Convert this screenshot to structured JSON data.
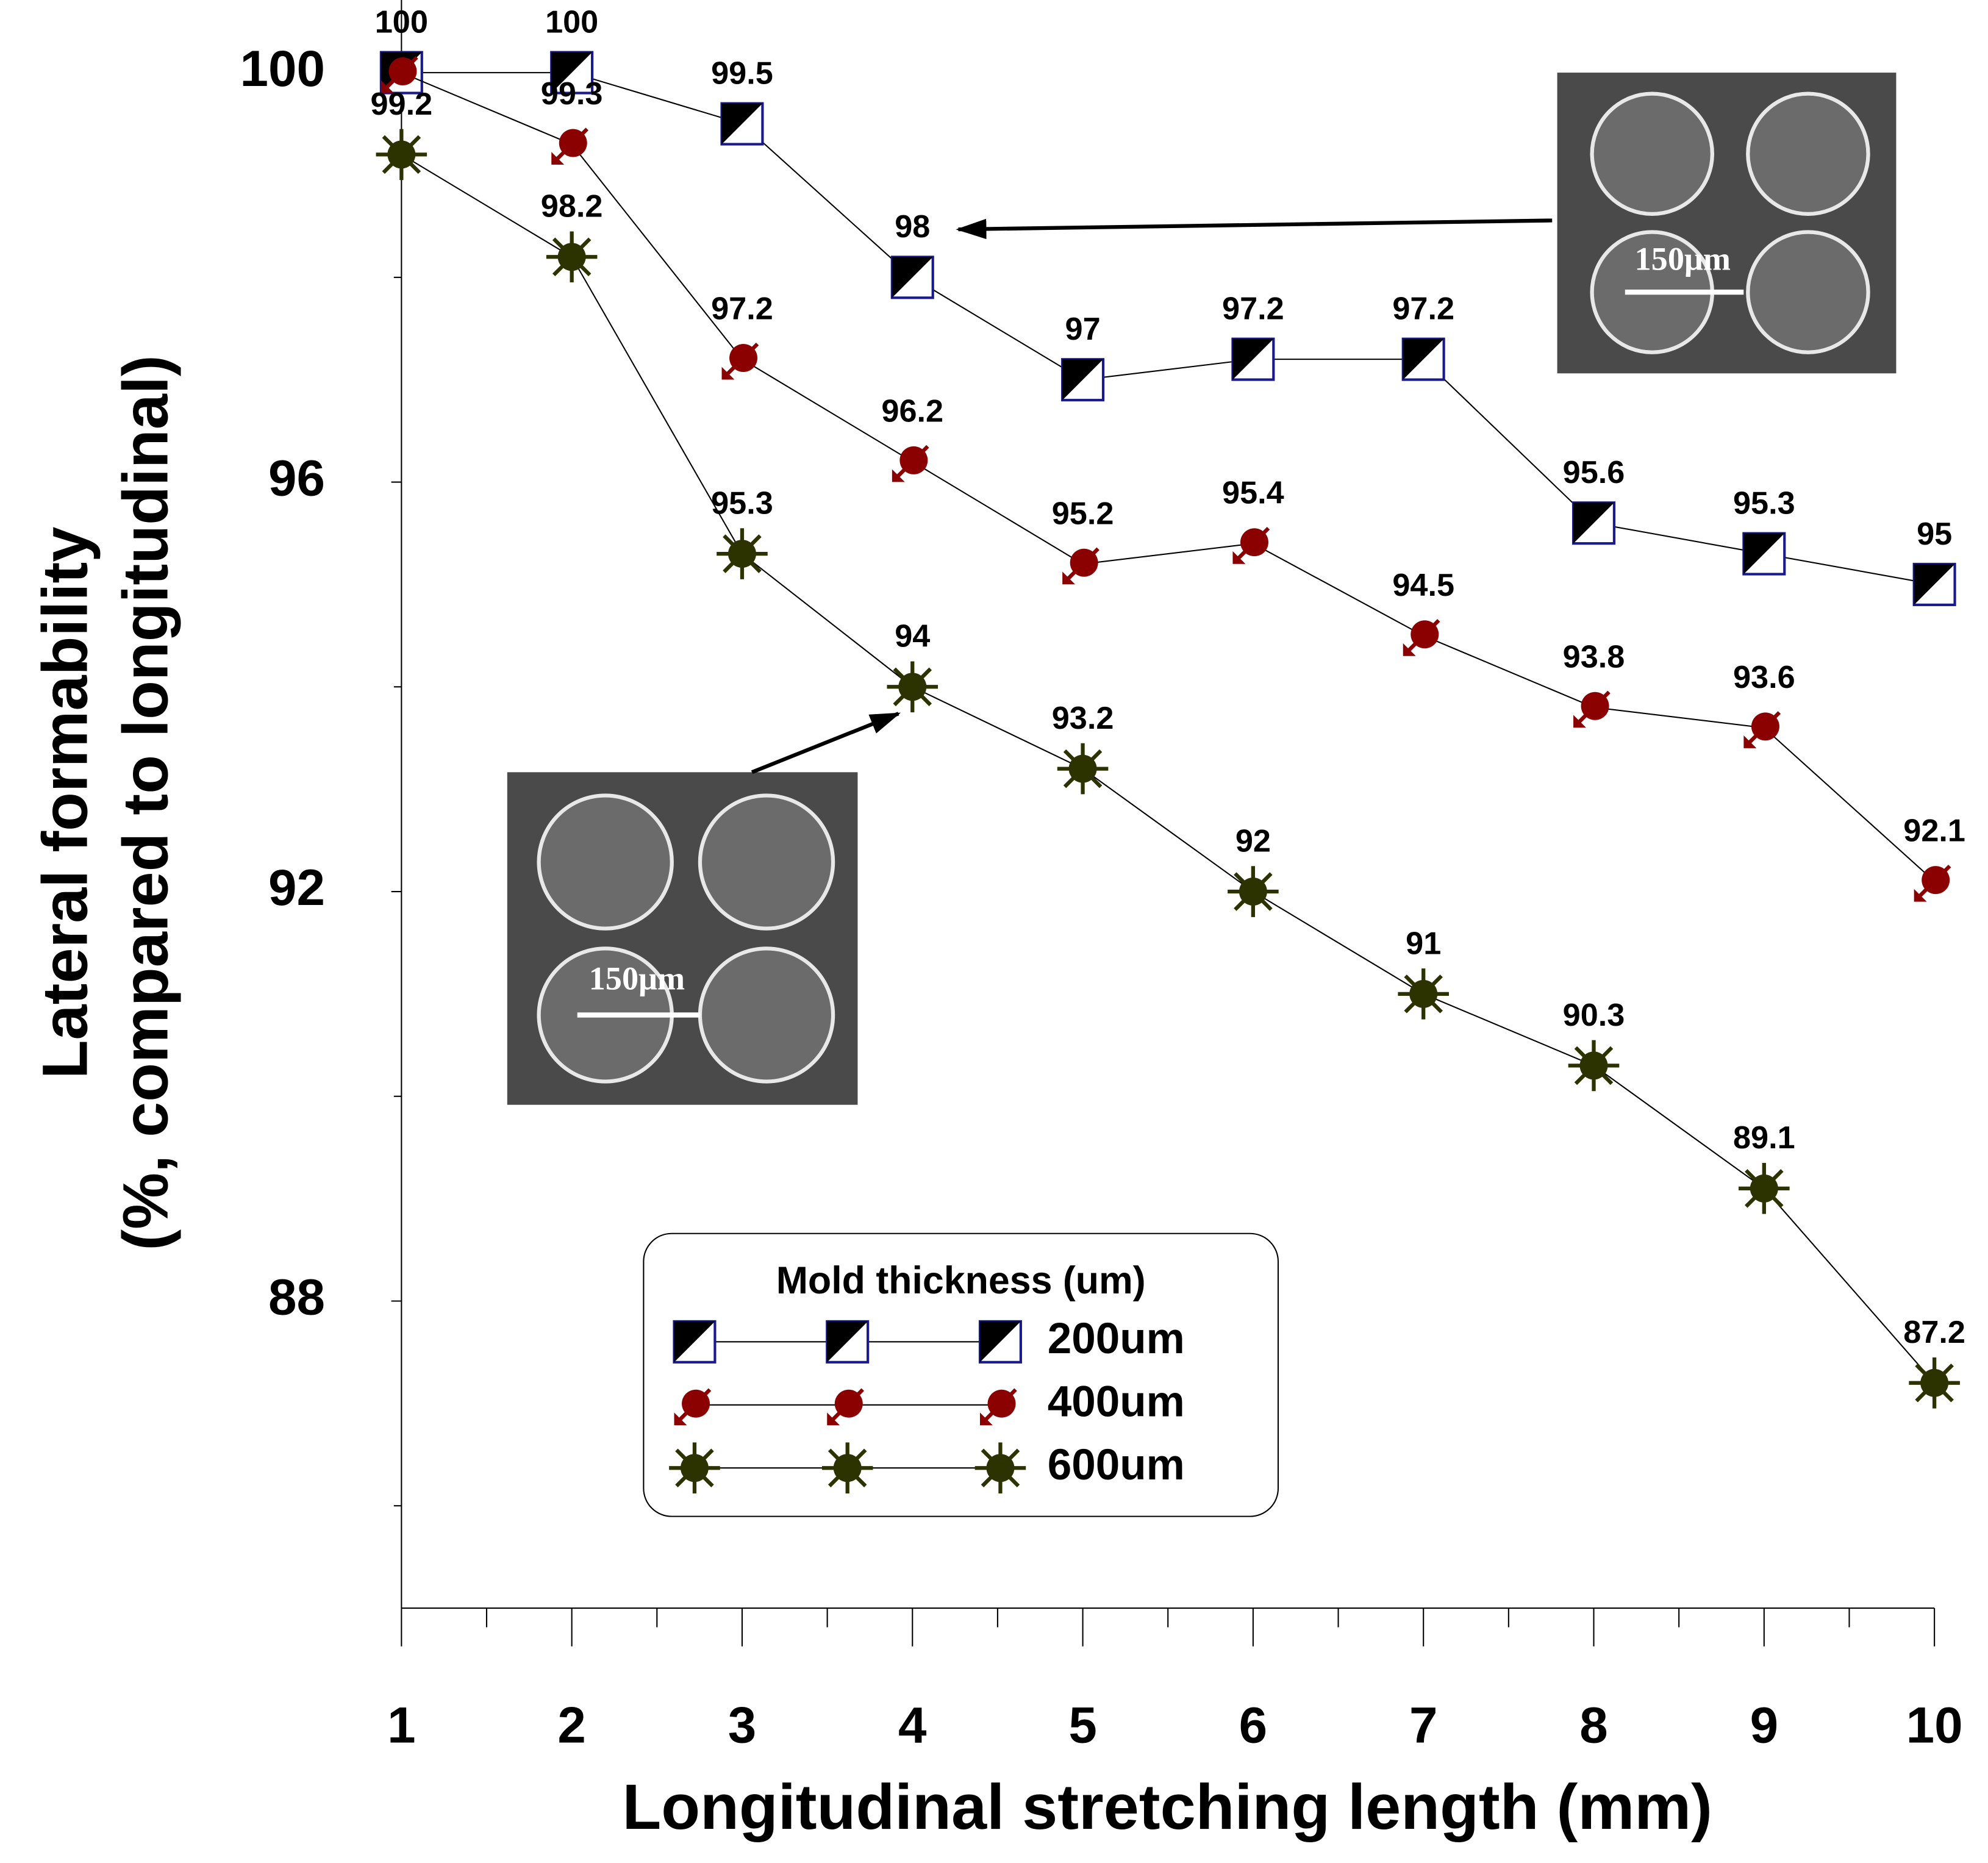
{
  "chart_data": {
    "type": "line",
    "xlabel": "Longitudinal stretching length (mm)",
    "ylabel": [
      "Lateral formability",
      "(%, compared to longitudinal)"
    ],
    "x": [
      1,
      2,
      3,
      4,
      5,
      6,
      7,
      8,
      9,
      10
    ],
    "xlim": [
      1,
      10
    ],
    "xticks": [
      1,
      2,
      3,
      4,
      5,
      6,
      7,
      8,
      9,
      10
    ],
    "xminor_ticks": [
      1.5,
      2.5,
      3.5,
      4.5,
      5.5,
      6.5,
      7.5,
      8.5,
      9.5
    ],
    "ylim": [
      85,
      100
    ],
    "yticks": [
      88,
      92,
      96,
      100
    ],
    "yminor_ticks": [
      86,
      90,
      94,
      98
    ],
    "legend_title": "Mold thickness (um)",
    "legend_position": "lower center",
    "series": [
      {
        "name": "200um",
        "color": "#1a1a8c",
        "marker": "half-square",
        "values": [
          100,
          100,
          99.5,
          98,
          97,
          97.2,
          97.2,
          95.6,
          95.3,
          95
        ]
      },
      {
        "name": "400um",
        "color": "#8b0000",
        "marker": "arrow-circle",
        "values": [
          100,
          99.3,
          97.2,
          96.2,
          95.2,
          95.4,
          94.5,
          93.8,
          93.6,
          92.1
        ]
      },
      {
        "name": "600um",
        "color": "#2d3300",
        "marker": "star",
        "values": [
          99.2,
          98.2,
          95.3,
          94,
          93.2,
          92,
          91,
          90.3,
          89.1,
          87.2
        ]
      }
    ],
    "annotations": [
      "150μm",
      "150μm"
    ]
  }
}
